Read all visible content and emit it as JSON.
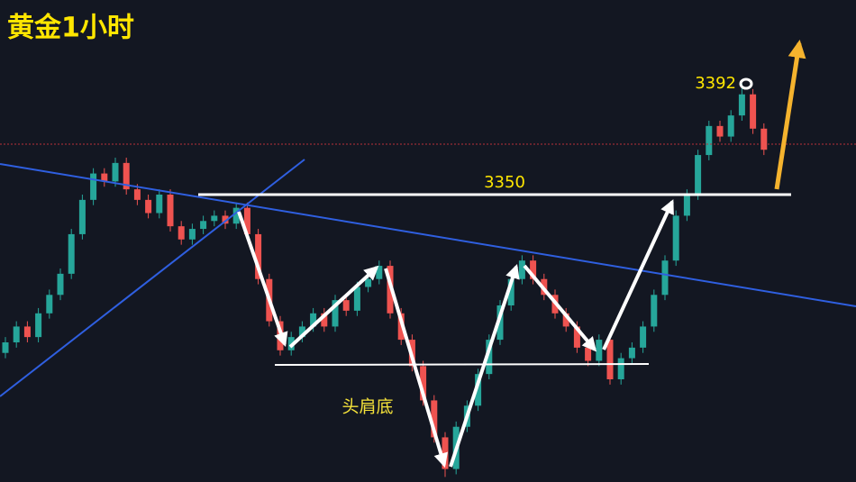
{
  "title": "黄金1小时",
  "chart_data": {
    "type": "candlestick",
    "open": [
      3290,
      3294,
      3300,
      3296,
      3305,
      3312,
      3320,
      3335,
      3348,
      3358,
      3355,
      3362,
      3352,
      3348,
      3343,
      3350,
      3338,
      3333,
      3337,
      3340,
      3342,
      3339,
      3345,
      3335,
      3318,
      3302,
      3291,
      3296,
      3300,
      3305,
      3300,
      3310,
      3306,
      3315,
      3318,
      3323,
      3305,
      3295,
      3285,
      3272,
      3258,
      3246,
      3262,
      3270,
      3282,
      3295,
      3308,
      3318,
      3325,
      3318,
      3312,
      3305,
      3300,
      3292,
      3287,
      3295,
      3280,
      3288,
      3292,
      3300,
      3312,
      3325,
      3342,
      3350,
      3365,
      3376,
      3372,
      3380,
      3388,
      3375
    ],
    "high": [
      3296,
      3302,
      3302,
      3307,
      3314,
      3322,
      3337,
      3350,
      3360,
      3360,
      3364,
      3364,
      3354,
      3350,
      3352,
      3352,
      3340,
      3339,
      3342,
      3344,
      3344,
      3347,
      3347,
      3337,
      3320,
      3304,
      3298,
      3302,
      3307,
      3307,
      3312,
      3312,
      3317,
      3320,
      3325,
      3325,
      3307,
      3297,
      3287,
      3274,
      3260,
      3264,
      3272,
      3284,
      3297,
      3310,
      3320,
      3327,
      3327,
      3320,
      3314,
      3307,
      3302,
      3294,
      3297,
      3297,
      3290,
      3294,
      3302,
      3314,
      3327,
      3344,
      3352,
      3367,
      3378,
      3378,
      3382,
      3392,
      3390,
      3377
    ],
    "low": [
      3288,
      3292,
      3294,
      3294,
      3303,
      3310,
      3318,
      3333,
      3346,
      3353,
      3353,
      3350,
      3346,
      3341,
      3341,
      3336,
      3331,
      3331,
      3335,
      3338,
      3337,
      3337,
      3333,
      3316,
      3300,
      3289,
      3289,
      3294,
      3298,
      3298,
      3298,
      3304,
      3304,
      3313,
      3316,
      3303,
      3293,
      3283,
      3270,
      3256,
      3243,
      3244,
      3260,
      3268,
      3280,
      3293,
      3306,
      3316,
      3316,
      3310,
      3303,
      3298,
      3290,
      3285,
      3285,
      3278,
      3278,
      3286,
      3290,
      3298,
      3310,
      3323,
      3340,
      3348,
      3363,
      3370,
      3370,
      3378,
      3373,
      3365
    ],
    "close": [
      3294,
      3300,
      3296,
      3305,
      3312,
      3320,
      3335,
      3348,
      3358,
      3355,
      3362,
      3352,
      3348,
      3343,
      3350,
      3338,
      3333,
      3337,
      3340,
      3342,
      3339,
      3345,
      3335,
      3318,
      3302,
      3291,
      3296,
      3300,
      3305,
      3300,
      3310,
      3306,
      3315,
      3318,
      3323,
      3305,
      3295,
      3285,
      3272,
      3258,
      3246,
      3262,
      3270,
      3282,
      3295,
      3308,
      3318,
      3325,
      3318,
      3312,
      3305,
      3300,
      3292,
      3287,
      3295,
      3280,
      3288,
      3292,
      3300,
      3312,
      3325,
      3342,
      3350,
      3365,
      3376,
      3372,
      3380,
      3388,
      3375,
      3367
    ],
    "up_color": "#26a69a",
    "down_color": "#ef5350",
    "levels": [
      3350,
      3392
    ],
    "pattern": "头肩底"
  }
}
